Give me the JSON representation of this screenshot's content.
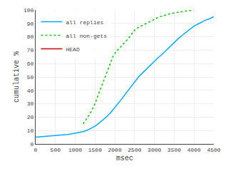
{
  "chart_data": {
    "type": "line",
    "xlabel": "msec",
    "ylabel": "cumulative %",
    "xlim": [
      0,
      4500
    ],
    "ylim": [
      0,
      100
    ],
    "xticks": [
      0,
      500,
      1000,
      1500,
      2000,
      2500,
      3000,
      3500,
      4000,
      4500
    ],
    "yticks": [
      0,
      10,
      20,
      30,
      40,
      50,
      60,
      70,
      80,
      90,
      100
    ],
    "grid": true,
    "legend": "upper left",
    "series": [
      {
        "name": "all replies",
        "color": "#00aaff",
        "line_style": "solid",
        "x": [
          0,
          100,
          200,
          300,
          400,
          500,
          600,
          700,
          800,
          900,
          1000,
          1100,
          1200,
          1300,
          1400,
          1500,
          1600,
          1700,
          1800,
          1900,
          2000,
          2100,
          2200,
          2300,
          2400,
          2500,
          2600,
          2700,
          2800,
          2900,
          3000,
          3100,
          3200,
          3300,
          3400,
          3500,
          3600,
          3700,
          3800,
          3900,
          4000,
          4100,
          4200,
          4300,
          4400,
          4500
        ],
        "values": [
          5.0,
          5.2,
          5.4,
          5.6,
          5.8,
          6.1,
          6.3,
          6.6,
          7.0,
          7.4,
          7.9,
          8.5,
          9.2,
          10.2,
          11.5,
          13.2,
          15.5,
          17.8,
          20.5,
          23.5,
          27.0,
          30.5,
          34.5,
          38.5,
          42.5,
          46.5,
          50.0,
          53.0,
          56.0,
          59.0,
          62.0,
          64.5,
          67.0,
          70.0,
          73.0,
          76.0,
          78.5,
          81.0,
          83.5,
          86.0,
          88.0,
          89.5,
          91.0,
          92.5,
          93.5,
          95.0
        ]
      },
      {
        "name": "all non-gets",
        "color": "#00cc00",
        "line_style": "dotted",
        "x": [
          1200,
          1250,
          1300,
          1350,
          1400,
          1450,
          1500,
          1550,
          1600,
          1650,
          1700,
          1750,
          1800,
          1850,
          1900,
          1950,
          2000,
          2050,
          2100,
          2150,
          2200,
          2250,
          2300,
          2350,
          2400,
          2450,
          2500,
          2600,
          2700,
          2800,
          2900,
          3000,
          3100,
          3200,
          3300,
          3400,
          3500,
          3600,
          3700,
          3800,
          3900,
          4000
        ],
        "values": [
          15.0,
          17.0,
          19.0,
          21.5,
          24.0,
          27.0,
          30.0,
          34.0,
          38.0,
          42.0,
          46.0,
          50.0,
          54.0,
          58.0,
          62.0,
          65.0,
          67.5,
          69.5,
          71.0,
          72.5,
          74.0,
          75.5,
          77.0,
          79.0,
          81.0,
          83.0,
          85.0,
          87.0,
          88.5,
          90.0,
          91.5,
          93.0,
          94.5,
          95.5,
          96.5,
          97.2,
          97.8,
          98.4,
          98.8,
          99.2,
          99.6,
          100.0
        ]
      },
      {
        "name": "HEAD",
        "color": "#cc0000",
        "line_style": "solid",
        "x": [
          null
        ],
        "values": [
          null
        ]
      }
    ]
  }
}
